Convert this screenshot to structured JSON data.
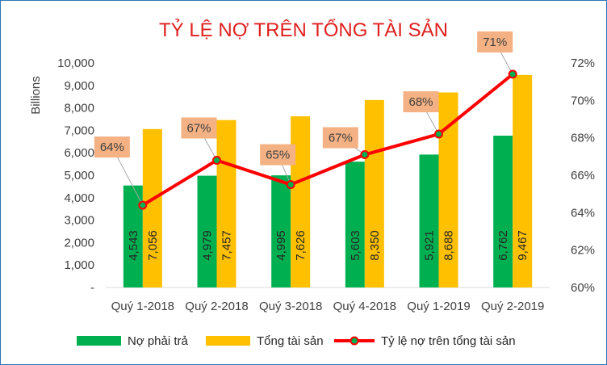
{
  "chart_data": {
    "type": "bar",
    "title": "TỶ LỆ NỢ TRÊN TỔNG TÀI SẢN",
    "ylabel": "Billions",
    "categories": [
      "Quý 1-2018",
      "Quý 2-2018",
      "Quý 3-2018",
      "Quý 4-2018",
      "Quý 1-2019",
      "Quý 2-2019"
    ],
    "ylim": [
      0,
      10000
    ],
    "y_ticks": [
      "-",
      "1,000",
      "2,000",
      "3,000",
      "4,000",
      "5,000",
      "6,000",
      "7,000",
      "8,000",
      "9,000",
      "10,000"
    ],
    "y2lim": [
      0.6,
      0.72
    ],
    "y2_ticks": [
      "60%",
      "62%",
      "64%",
      "66%",
      "68%",
      "70%",
      "72%"
    ],
    "series": [
      {
        "name": "Nợ phải trả",
        "type": "bar",
        "color": "#00b050",
        "values": [
          4543,
          4979,
          4995,
          5603,
          5921,
          6762
        ],
        "labels": [
          "4,543",
          "4,979",
          "4,995",
          "5,603",
          "5,921",
          "6,762"
        ]
      },
      {
        "name": "Tổng tài sản",
        "type": "bar",
        "color": "#ffc000",
        "values": [
          7056,
          7457,
          7626,
          8350,
          8688,
          9467
        ],
        "labels": [
          "7,056",
          "7,457",
          "7,626",
          "8,350",
          "8,688",
          "9,467"
        ]
      },
      {
        "name": "Tỷ lệ nợ trên tổng tài sản",
        "type": "line",
        "axis": "secondary",
        "color": "#ff0000",
        "marker_color": "#00b050",
        "values": [
          0.644,
          0.668,
          0.655,
          0.671,
          0.682,
          0.714
        ],
        "labels": [
          "64%",
          "67%",
          "65%",
          "67%",
          "68%",
          "71%"
        ]
      }
    ],
    "grid": false,
    "legend": "bottom"
  }
}
